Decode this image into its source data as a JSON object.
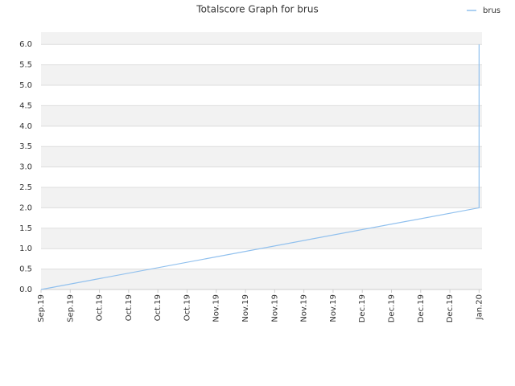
{
  "chart_data": {
    "type": "line",
    "title": "Totalscore Graph for brus",
    "x": [
      0,
      15,
      15
    ],
    "series": [
      {
        "name": "brus",
        "color": "#90c0ee",
        "values": [
          0,
          2,
          6
        ]
      }
    ],
    "xlim": [
      0,
      15.1
    ],
    "xticks": [
      {
        "value": 0,
        "label": "Sep.19"
      },
      {
        "value": 1,
        "label": "Sep.19"
      },
      {
        "value": 2,
        "label": "Oct.19"
      },
      {
        "value": 3,
        "label": "Oct.19"
      },
      {
        "value": 4,
        "label": "Oct.19"
      },
      {
        "value": 5,
        "label": "Oct.19"
      },
      {
        "value": 6,
        "label": "Nov.19"
      },
      {
        "value": 7,
        "label": "Nov.19"
      },
      {
        "value": 8,
        "label": "Nov.19"
      },
      {
        "value": 9,
        "label": "Nov.19"
      },
      {
        "value": 10,
        "label": "Nov.19"
      },
      {
        "value": 11,
        "label": "Dec.19"
      },
      {
        "value": 12,
        "label": "Dec.19"
      },
      {
        "value": 13,
        "label": "Dec.19"
      },
      {
        "value": 14,
        "label": "Dec.19"
      },
      {
        "value": 15,
        "label": "Jan.20"
      }
    ],
    "ylim": [
      0,
      6.3
    ],
    "yticks": [
      {
        "value": 0,
        "label": "0.0"
      },
      {
        "value": 0.5,
        "label": "0.5"
      },
      {
        "value": 1,
        "label": "1.0"
      },
      {
        "value": 1.5,
        "label": "1.5"
      },
      {
        "value": 2,
        "label": "2.0"
      },
      {
        "value": 2.5,
        "label": "2.5"
      },
      {
        "value": 3,
        "label": "3.0"
      },
      {
        "value": 3.5,
        "label": "3.5"
      },
      {
        "value": 4,
        "label": "4.0"
      },
      {
        "value": 4.5,
        "label": "4.5"
      },
      {
        "value": 5,
        "label": "5.0"
      },
      {
        "value": 5.5,
        "label": "5.5"
      },
      {
        "value": 6,
        "label": "6.0"
      }
    ],
    "grid": true,
    "legend": "top-right"
  }
}
